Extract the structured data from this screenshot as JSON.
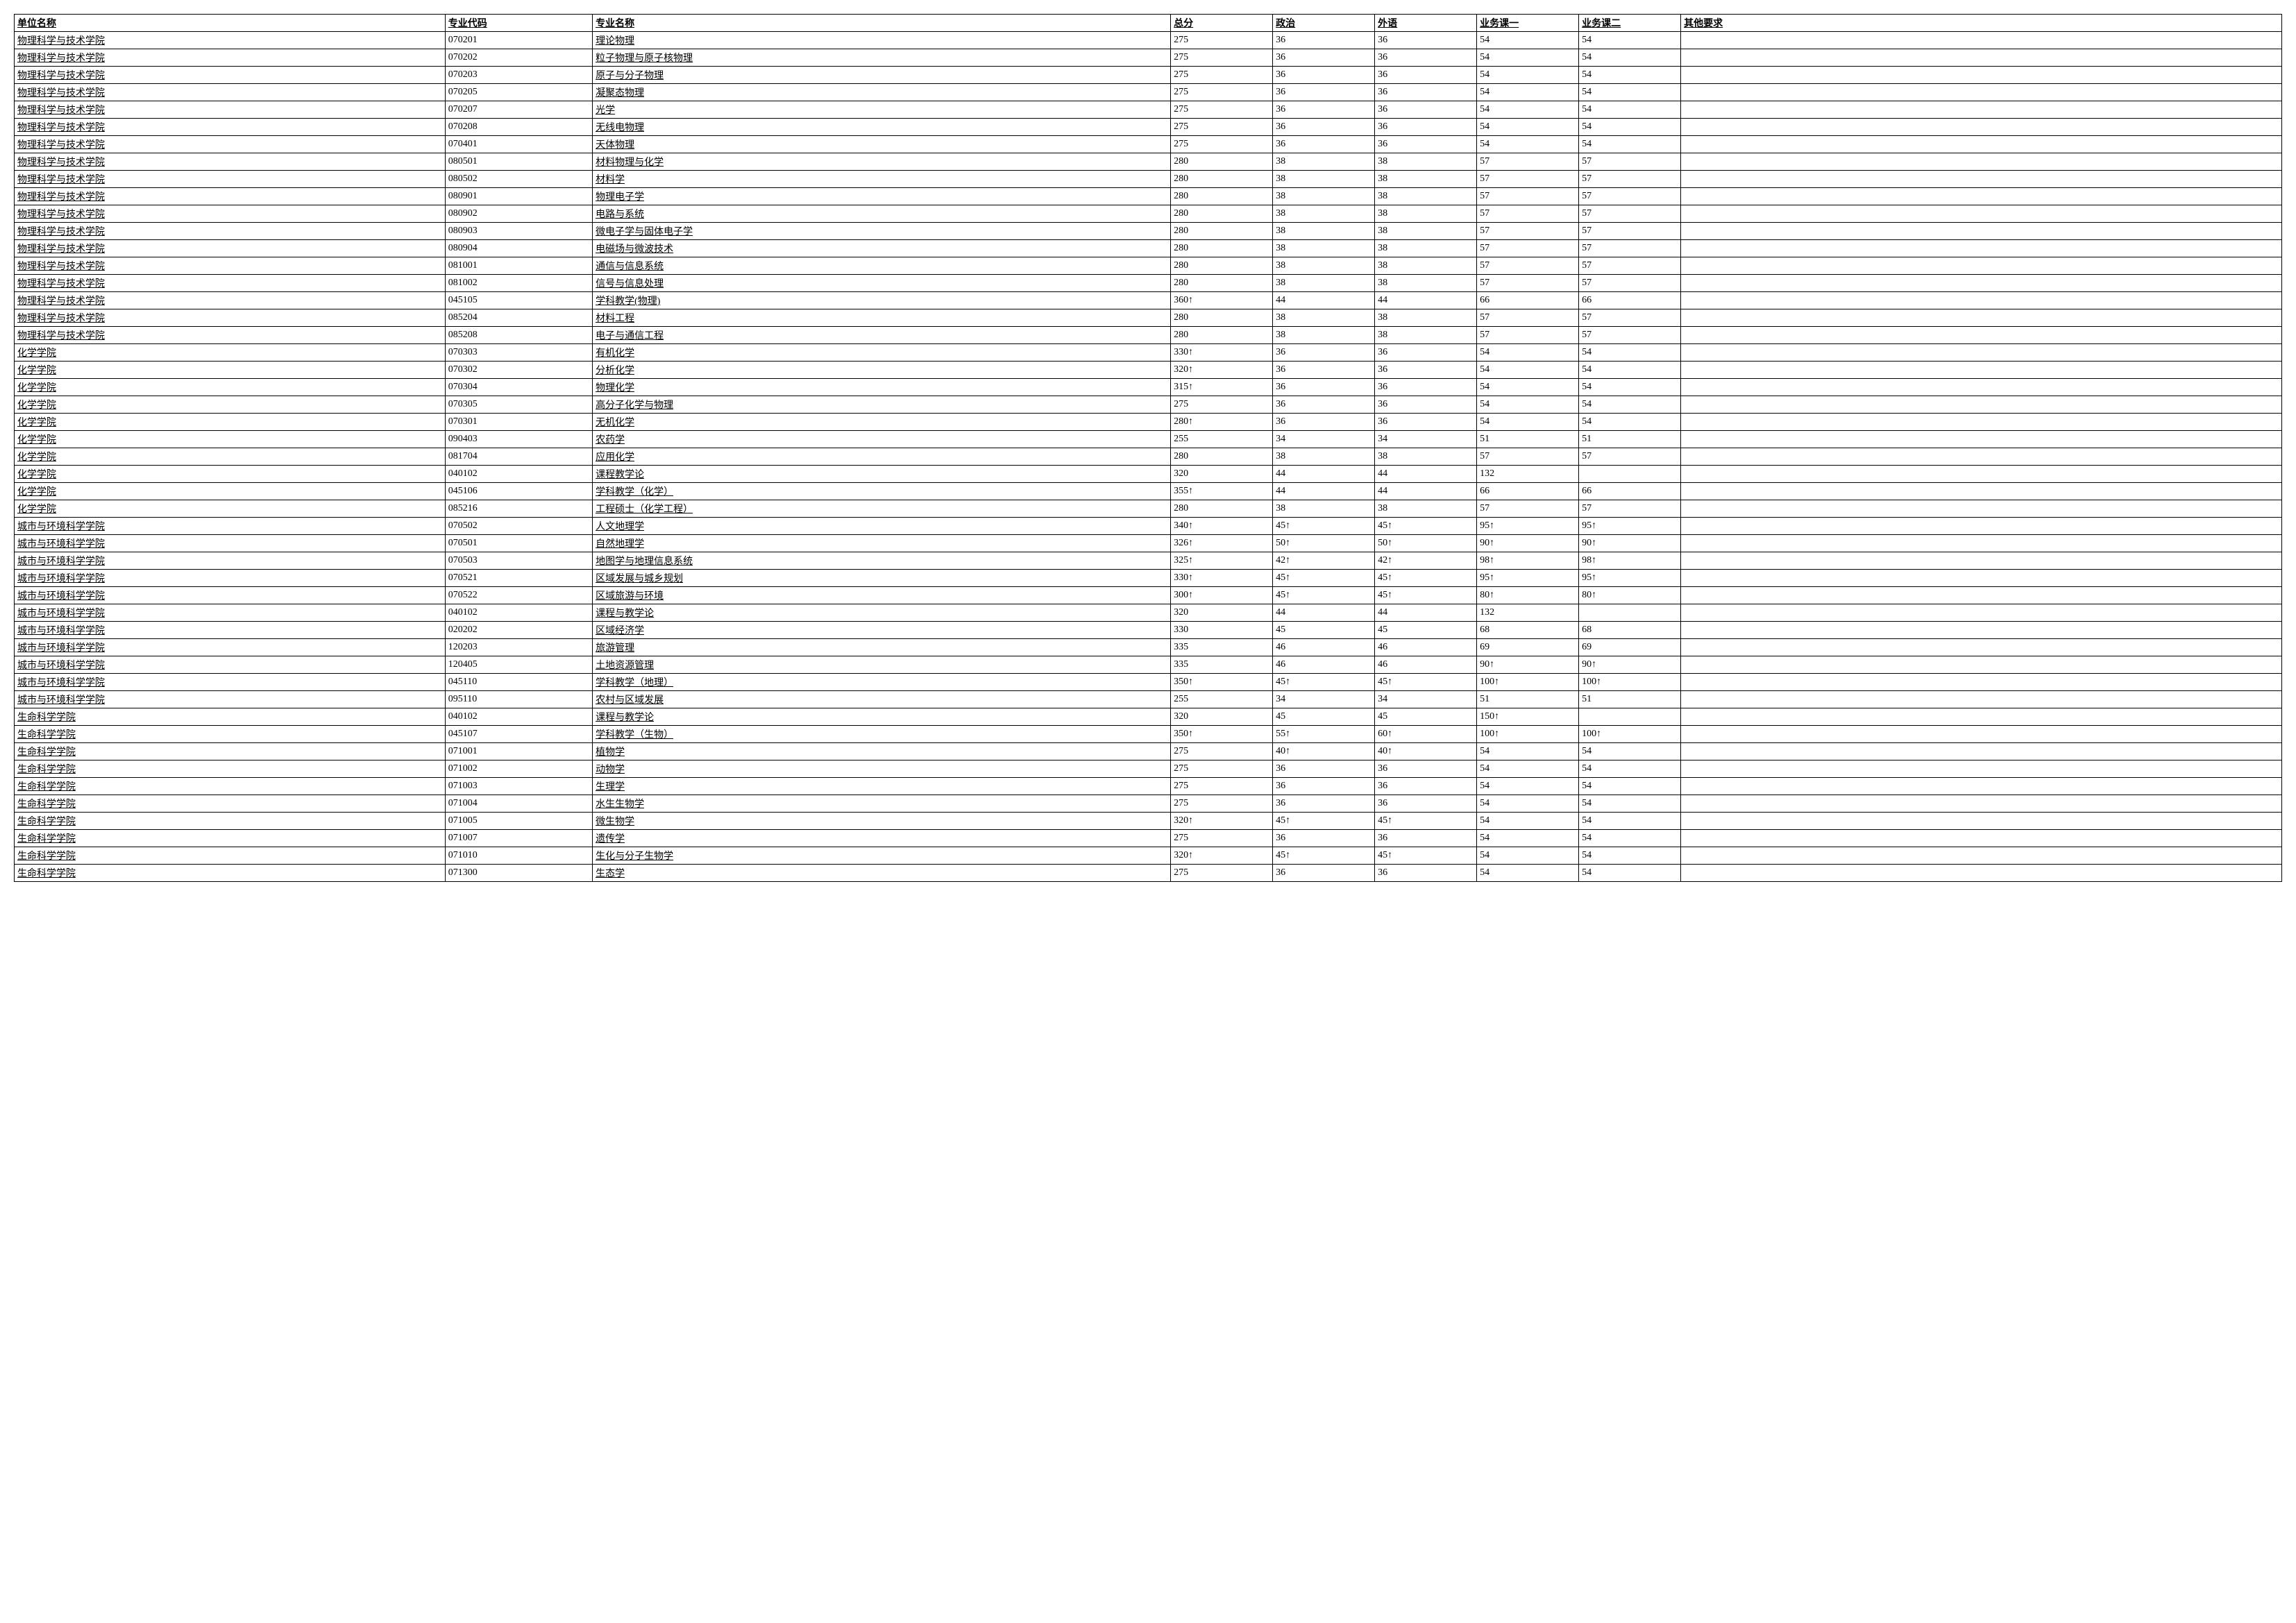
{
  "headers": {
    "unit": "单位名称",
    "code": "专业代码",
    "major": "专业名称",
    "total": "总分",
    "politics": "政治",
    "foreign": "外语",
    "course1": "业务课一",
    "course2": "业务课二",
    "other": "其他要求"
  },
  "rows": [
    {
      "unit": "物理科学与技术学院",
      "code": "070201",
      "major": "理论物理",
      "total": "275",
      "politics": "36",
      "foreign": "36",
      "course1": "54",
      "course2": "54",
      "other": ""
    },
    {
      "unit": "物理科学与技术学院",
      "code": "070202",
      "major": "粒子物理与原子核物理",
      "total": "275",
      "politics": "36",
      "foreign": "36",
      "course1": "54",
      "course2": "54",
      "other": ""
    },
    {
      "unit": "物理科学与技术学院",
      "code": "070203",
      "major": "原子与分子物理",
      "total": "275",
      "politics": "36",
      "foreign": "36",
      "course1": "54",
      "course2": "54",
      "other": ""
    },
    {
      "unit": "物理科学与技术学院",
      "code": "070205",
      "major": "凝聚态物理",
      "total": "275",
      "politics": "36",
      "foreign": "36",
      "course1": "54",
      "course2": "54",
      "other": ""
    },
    {
      "unit": "物理科学与技术学院",
      "code": "070207",
      "major": "光学",
      "total": "275",
      "politics": "36",
      "foreign": "36",
      "course1": "54",
      "course2": "54",
      "other": ""
    },
    {
      "unit": "物理科学与技术学院",
      "code": "070208",
      "major": "无线电物理",
      "total": "275",
      "politics": "36",
      "foreign": "36",
      "course1": "54",
      "course2": "54",
      "other": ""
    },
    {
      "unit": "物理科学与技术学院",
      "code": "070401",
      "major": "天体物理",
      "total": "275",
      "politics": "36",
      "foreign": "36",
      "course1": "54",
      "course2": "54",
      "other": ""
    },
    {
      "unit": "物理科学与技术学院",
      "code": "080501",
      "major": "材料物理与化学",
      "total": "280",
      "politics": "38",
      "foreign": "38",
      "course1": "57",
      "course2": "57",
      "other": ""
    },
    {
      "unit": "物理科学与技术学院",
      "code": "080502",
      "major": "材料学",
      "total": "280",
      "politics": "38",
      "foreign": "38",
      "course1": "57",
      "course2": "57",
      "other": ""
    },
    {
      "unit": "物理科学与技术学院",
      "code": "080901",
      "major": "物理电子学",
      "total": "280",
      "politics": "38",
      "foreign": "38",
      "course1": "57",
      "course2": "57",
      "other": ""
    },
    {
      "unit": "物理科学与技术学院",
      "code": "080902",
      "major": "电路与系统",
      "total": "280",
      "politics": "38",
      "foreign": "38",
      "course1": "57",
      "course2": "57",
      "other": ""
    },
    {
      "unit": "物理科学与技术学院",
      "code": "080903",
      "major": "微电子学与固体电子学",
      "total": "280",
      "politics": "38",
      "foreign": "38",
      "course1": "57",
      "course2": "57",
      "other": ""
    },
    {
      "unit": "物理科学与技术学院",
      "code": "080904",
      "major": "电磁场与微波技术",
      "total": "280",
      "politics": "38",
      "foreign": "38",
      "course1": "57",
      "course2": "57",
      "other": ""
    },
    {
      "unit": "物理科学与技术学院",
      "code": "081001",
      "major": "通信与信息系统",
      "total": "280",
      "politics": "38",
      "foreign": "38",
      "course1": "57",
      "course2": "57",
      "other": ""
    },
    {
      "unit": "物理科学与技术学院",
      "code": "081002",
      "major": "信号与信息处理",
      "total": "280",
      "politics": "38",
      "foreign": "38",
      "course1": "57",
      "course2": "57",
      "other": ""
    },
    {
      "unit": "物理科学与技术学院",
      "code": "045105",
      "major": "学科教学(物理)",
      "total": "360↑",
      "politics": "44",
      "foreign": "44",
      "course1": "66",
      "course2": "66",
      "other": ""
    },
    {
      "unit": "物理科学与技术学院",
      "code": "085204",
      "major": "材料工程",
      "total": "280",
      "politics": "38",
      "foreign": "38",
      "course1": "57",
      "course2": "57",
      "other": ""
    },
    {
      "unit": "物理科学与技术学院",
      "code": "085208",
      "major": "电子与通信工程",
      "total": "280",
      "politics": "38",
      "foreign": "38",
      "course1": "57",
      "course2": "57",
      "other": ""
    },
    {
      "unit": "化学学院",
      "code": "070303",
      "major": "有机化学",
      "total": "330↑",
      "politics": "36",
      "foreign": "36",
      "course1": "54",
      "course2": "54",
      "other": ""
    },
    {
      "unit": "化学学院",
      "code": "070302",
      "major": "分析化学",
      "total": "320↑",
      "politics": "36",
      "foreign": "36",
      "course1": "54",
      "course2": "54",
      "other": ""
    },
    {
      "unit": "化学学院",
      "code": "070304",
      "major": "物理化学",
      "total": "315↑",
      "politics": "36",
      "foreign": "36",
      "course1": "54",
      "course2": "54",
      "other": ""
    },
    {
      "unit": "化学学院",
      "code": "070305",
      "major": "高分子化学与物理",
      "total": "275",
      "politics": "36",
      "foreign": "36",
      "course1": "54",
      "course2": "54",
      "other": ""
    },
    {
      "unit": "化学学院",
      "code": "070301",
      "major": "无机化学",
      "total": "280↑",
      "politics": "36",
      "foreign": "36",
      "course1": "54",
      "course2": "54",
      "other": ""
    },
    {
      "unit": "化学学院",
      "code": "090403",
      "major": "农药学",
      "total": "255",
      "politics": "34",
      "foreign": "34",
      "course1": "51",
      "course2": "51",
      "other": ""
    },
    {
      "unit": "化学学院",
      "code": "081704",
      "major": "应用化学",
      "total": "280",
      "politics": "38",
      "foreign": "38",
      "course1": "57",
      "course2": "57",
      "other": ""
    },
    {
      "unit": "化学学院",
      "code": "040102",
      "major": "课程教学论",
      "total": "320",
      "politics": "44",
      "foreign": "44",
      "course1": "132",
      "course2": "",
      "other": ""
    },
    {
      "unit": "化学学院",
      "code": "045106",
      "major": "学科教学（化学）",
      "total": "355↑",
      "politics": "44",
      "foreign": "44",
      "course1": "66",
      "course2": "66",
      "other": ""
    },
    {
      "unit": "化学学院",
      "code": "085216",
      "major": "工程硕士（化学工程）",
      "total": "280",
      "politics": "38",
      "foreign": "38",
      "course1": "57",
      "course2": "57",
      "other": ""
    },
    {
      "unit": "城市与环境科学学院",
      "code": "070502",
      "major": "人文地理学",
      "total": "340↑",
      "politics": "45↑",
      "foreign": "45↑",
      "course1": "95↑",
      "course2": "95↑",
      "other": ""
    },
    {
      "unit": "城市与环境科学学院",
      "code": "070501",
      "major": "自然地理学",
      "total": "326↑",
      "politics": "50↑",
      "foreign": "50↑",
      "course1": "90↑",
      "course2": "90↑",
      "other": ""
    },
    {
      "unit": "城市与环境科学学院",
      "code": "070503",
      "major": "地图学与地理信息系统",
      "total": "325↑",
      "politics": "42↑",
      "foreign": "42↑",
      "course1": "98↑",
      "course2": "98↑",
      "other": ""
    },
    {
      "unit": "城市与环境科学学院",
      "code": "070521",
      "major": "区域发展与城乡规划",
      "total": "330↑",
      "politics": "45↑",
      "foreign": "45↑",
      "course1": "95↑",
      "course2": "95↑",
      "other": ""
    },
    {
      "unit": "城市与环境科学学院",
      "code": "070522",
      "major": "区域旅游与环境",
      "total": "300↑",
      "politics": "45↑",
      "foreign": "45↑",
      "course1": "80↑",
      "course2": "80↑",
      "other": ""
    },
    {
      "unit": "城市与环境科学学院",
      "code": "040102",
      "major": "课程与教学论",
      "total": "320",
      "politics": "44",
      "foreign": "44",
      "course1": "132",
      "course2": "",
      "other": ""
    },
    {
      "unit": "城市与环境科学学院",
      "code": "020202",
      "major": "区域经济学",
      "total": "330",
      "politics": "45",
      "foreign": "45",
      "course1": "68",
      "course2": "68",
      "other": ""
    },
    {
      "unit": "城市与环境科学学院",
      "code": "120203",
      "major": "旅游管理",
      "total": "335",
      "politics": "46",
      "foreign": "46",
      "course1": "69",
      "course2": "69",
      "other": ""
    },
    {
      "unit": "城市与环境科学学院",
      "code": "120405",
      "major": "土地资源管理",
      "total": "335",
      "politics": "46",
      "foreign": "46",
      "course1": "90↑",
      "course2": "90↑",
      "other": ""
    },
    {
      "unit": "城市与环境科学学院",
      "code": "045110",
      "major": "学科教学（地理）",
      "total": "350↑",
      "politics": "45↑",
      "foreign": "45↑",
      "course1": "100↑",
      "course2": "100↑",
      "other": ""
    },
    {
      "unit": "城市与环境科学学院",
      "code": "095110",
      "major": "农村与区域发展",
      "total": "255",
      "politics": "34",
      "foreign": "34",
      "course1": "51",
      "course2": "51",
      "other": ""
    },
    {
      "unit": "生命科学学院",
      "code": "040102",
      "major": "课程与教学论",
      "total": "320",
      "politics": "45",
      "foreign": "45",
      "course1": "150↑",
      "course2": "",
      "other": ""
    },
    {
      "unit": "生命科学学院",
      "code": "045107",
      "major": "学科教学（生物）",
      "total": "350↑",
      "politics": "55↑",
      "foreign": "60↑",
      "course1": "100↑",
      "course2": "100↑",
      "other": ""
    },
    {
      "unit": "生命科学学院",
      "code": "071001",
      "major": "植物学",
      "total": "275",
      "politics": "40↑",
      "foreign": "40↑",
      "course1": "54",
      "course2": "54",
      "other": ""
    },
    {
      "unit": "生命科学学院",
      "code": "071002",
      "major": "动物学",
      "total": "275",
      "politics": "36",
      "foreign": "36",
      "course1": "54",
      "course2": "54",
      "other": ""
    },
    {
      "unit": "生命科学学院",
      "code": "071003",
      "major": "生理学",
      "total": "275",
      "politics": "36",
      "foreign": "36",
      "course1": "54",
      "course2": "54",
      "other": ""
    },
    {
      "unit": "生命科学学院",
      "code": "071004",
      "major": "水生生物学",
      "total": "275",
      "politics": "36",
      "foreign": "36",
      "course1": "54",
      "course2": "54",
      "other": ""
    },
    {
      "unit": "生命科学学院",
      "code": "071005",
      "major": "微生物学",
      "total": "320↑",
      "politics": "45↑",
      "foreign": "45↑",
      "course1": "54",
      "course2": "54",
      "other": ""
    },
    {
      "unit": "生命科学学院",
      "code": "071007",
      "major": "遗传学",
      "total": "275",
      "politics": "36",
      "foreign": "36",
      "course1": "54",
      "course2": "54",
      "other": ""
    },
    {
      "unit": "生命科学学院",
      "code": "071010",
      "major": "生化与分子生物学",
      "total": "320↑",
      "politics": "45↑",
      "foreign": "45↑",
      "course1": "54",
      "course2": "54",
      "other": ""
    },
    {
      "unit": "生命科学学院",
      "code": "071300",
      "major": "生态学",
      "total": "275",
      "politics": "36",
      "foreign": "36",
      "course1": "54",
      "course2": "54",
      "other": ""
    }
  ]
}
